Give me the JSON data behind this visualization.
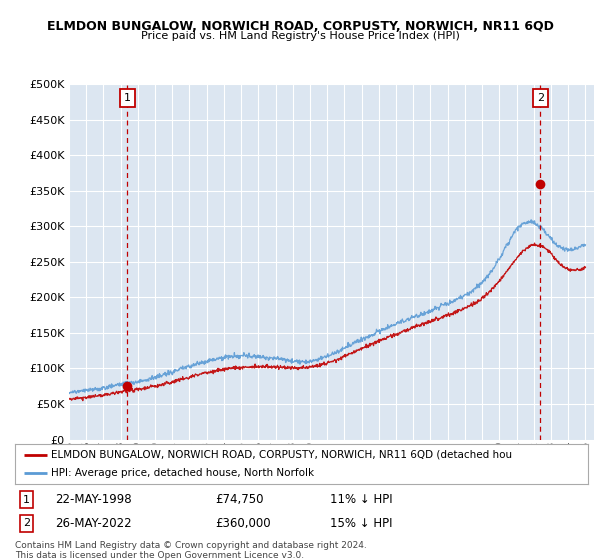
{
  "title": "ELMDON BUNGALOW, NORWICH ROAD, CORPUSTY, NORWICH, NR11 6QD",
  "subtitle": "Price paid vs. HM Land Registry's House Price Index (HPI)",
  "legend_line1": "ELMDON BUNGALOW, NORWICH ROAD, CORPUSTY, NORWICH, NR11 6QD (detached hou",
  "legend_line2": "HPI: Average price, detached house, North Norfolk",
  "annotation1_date": "22-MAY-1998",
  "annotation1_price": "£74,750",
  "annotation1_hpi": "11% ↓ HPI",
  "annotation2_date": "26-MAY-2022",
  "annotation2_price": "£360,000",
  "annotation2_hpi": "15% ↓ HPI",
  "footer": "Contains HM Land Registry data © Crown copyright and database right 2024.\nThis data is licensed under the Open Government Licence v3.0.",
  "hpi_color": "#5b9bd5",
  "price_color": "#c00000",
  "sale_marker_color": "#c00000",
  "vline_color": "#c00000",
  "background_color": "#dce6f1",
  "grid_color": "#ffffff",
  "ylim": [
    0,
    500000
  ],
  "yticks": [
    0,
    50000,
    100000,
    150000,
    200000,
    250000,
    300000,
    350000,
    400000,
    450000,
    500000
  ],
  "xlim_start": 1995.0,
  "xlim_end": 2025.5,
  "sale1_x": 1998.38,
  "sale1_y": 74750,
  "sale2_x": 2022.38,
  "sale2_y": 360000
}
